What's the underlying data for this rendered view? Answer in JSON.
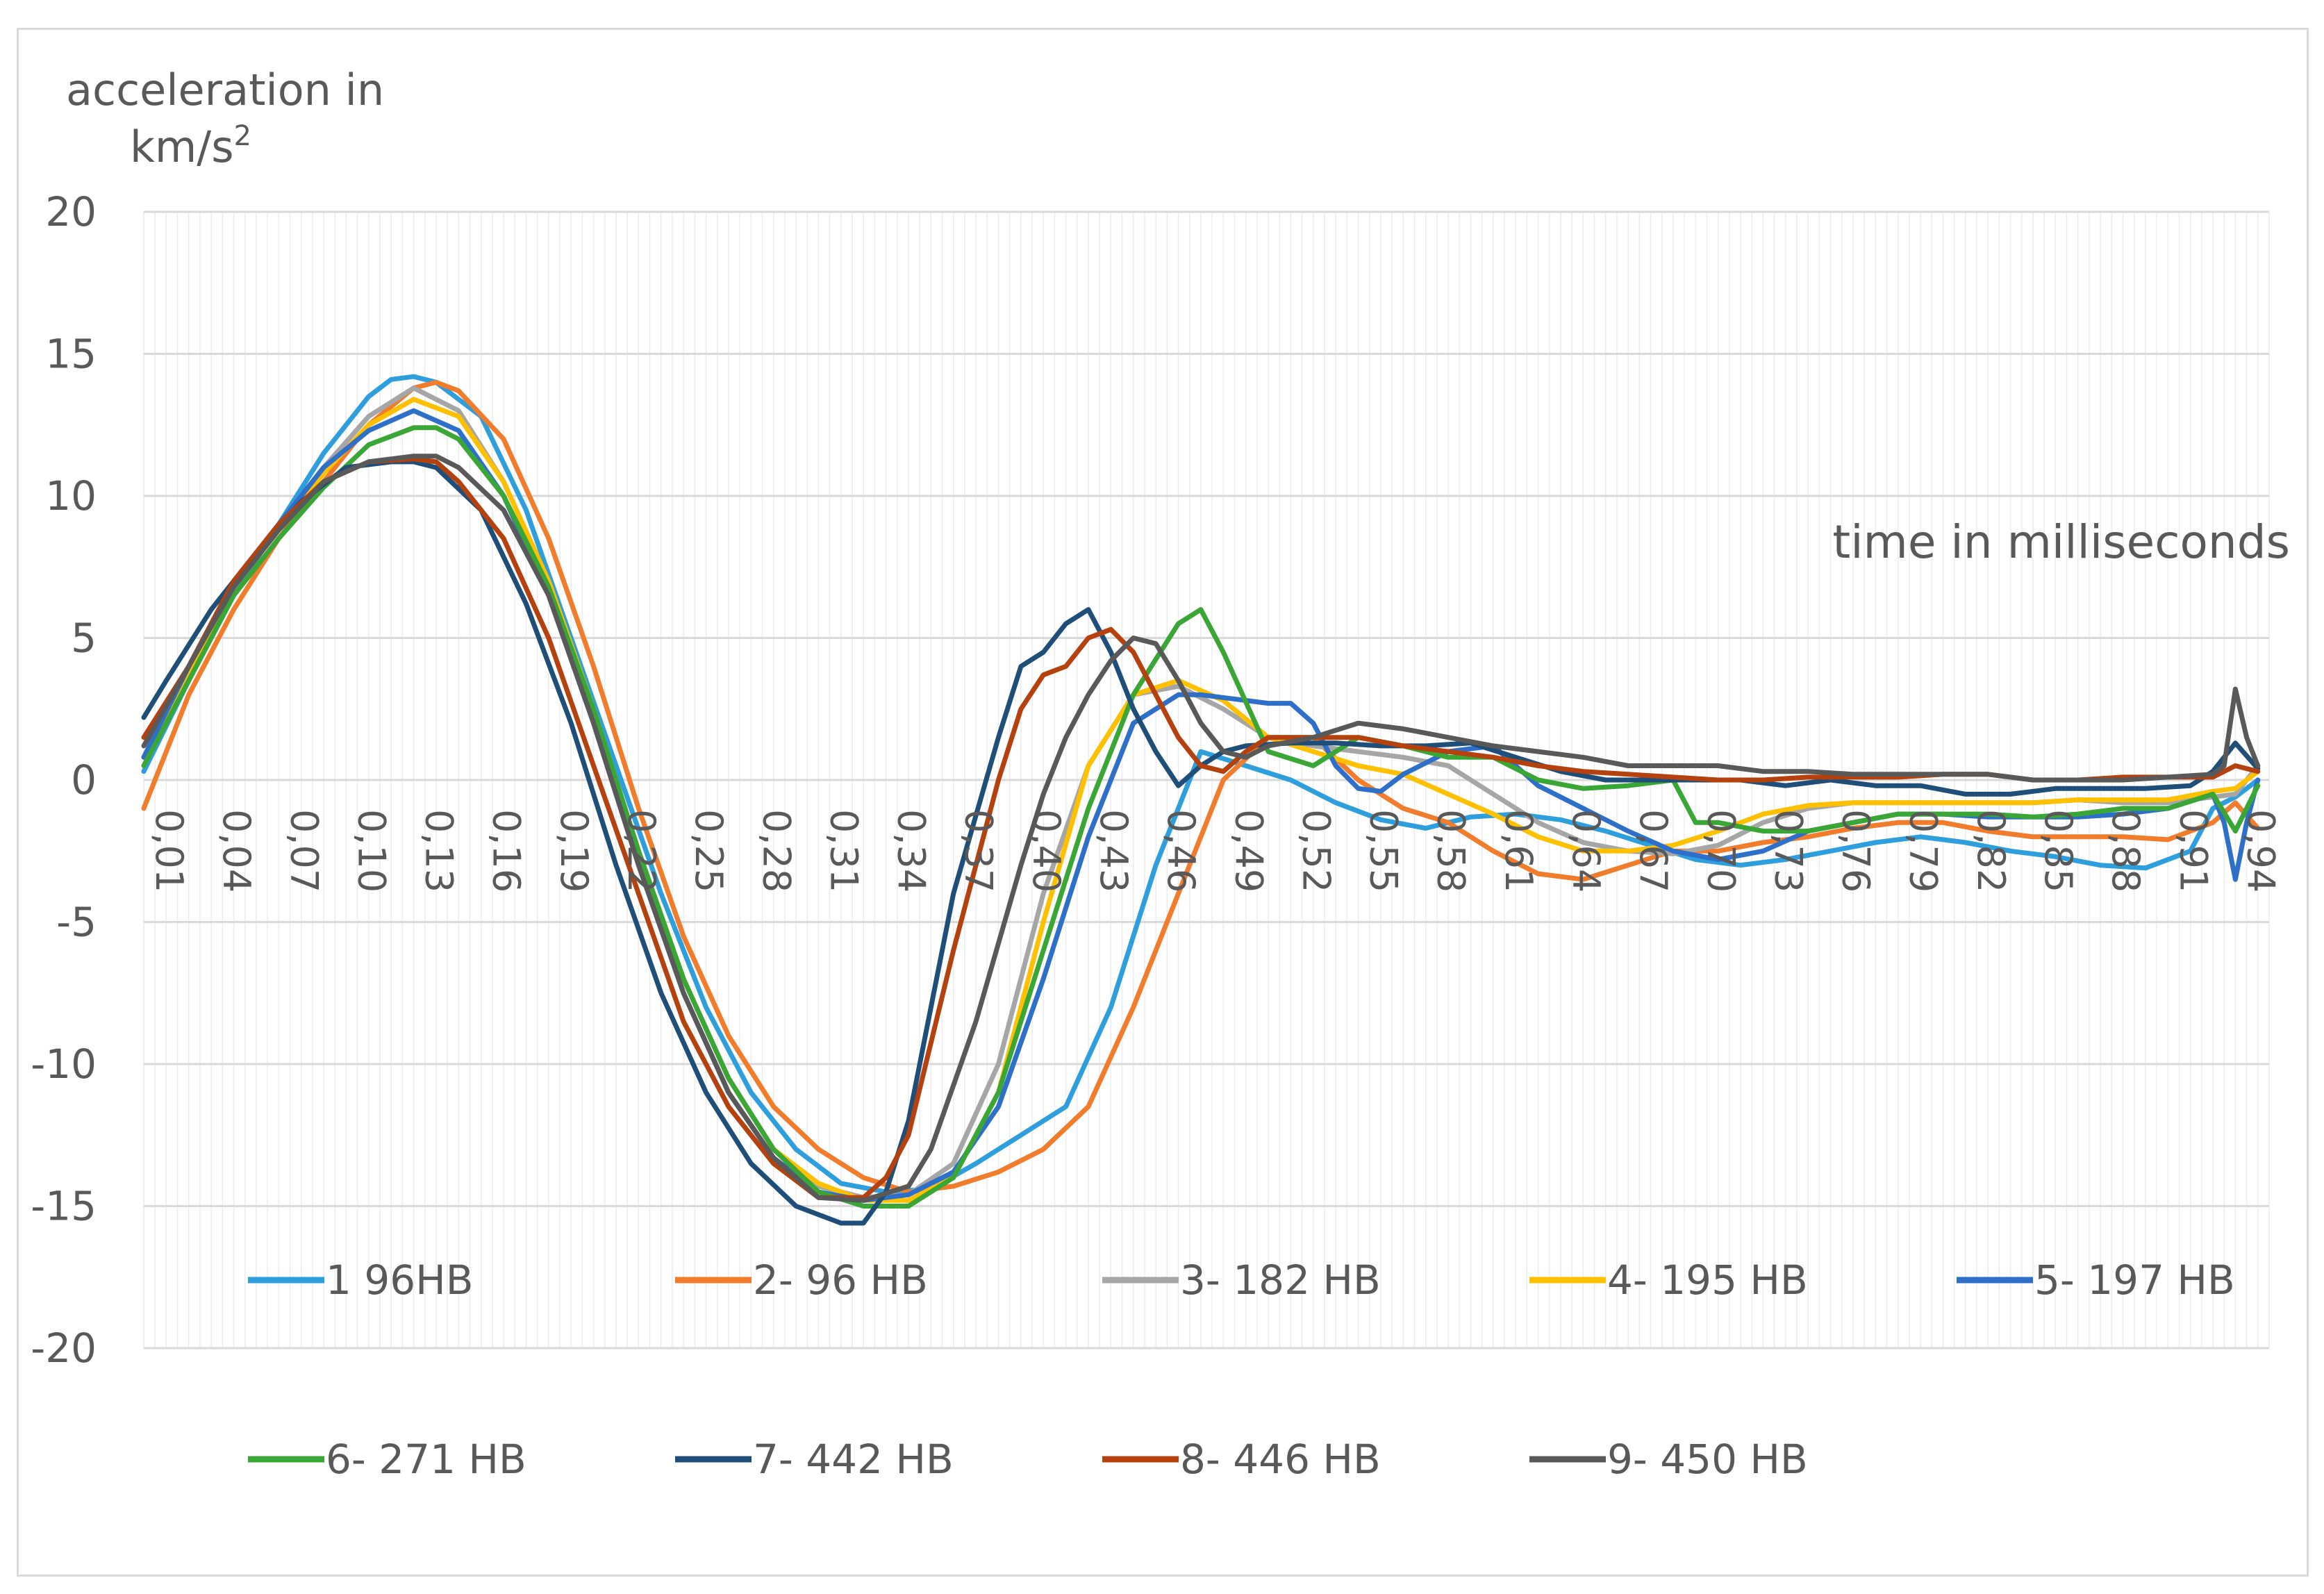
{
  "chart_data": {
    "type": "line",
    "ylabel_line1": "acceleration in",
    "ylabel_line2": "km/s",
    "ylabel_sup": "2",
    "xlabel": "time in milliseconds",
    "ylim": [
      -20,
      20
    ],
    "y_ticks": [
      20,
      15,
      10,
      5,
      0,
      -5,
      -10,
      -15,
      -20
    ],
    "x_tick_labels": [
      "0,01",
      "0,04",
      "0,07",
      "0,10",
      "0,13",
      "0,16",
      "0,19",
      "0,22",
      "0,25",
      "0,28",
      "0,31",
      "0,34",
      "0,37",
      "0,40",
      "0,43",
      "0,46",
      "0,49",
      "0,52",
      "0,55",
      "0,58",
      "0,61",
      "0,64",
      "0,67",
      "0,70",
      "0,73",
      "0,76",
      "0,79",
      "0,82",
      "0,85",
      "0,88",
      "0,91",
      "0,94"
    ],
    "x_tick_values": [
      0.01,
      0.04,
      0.07,
      0.1,
      0.13,
      0.16,
      0.19,
      0.22,
      0.25,
      0.28,
      0.31,
      0.34,
      0.37,
      0.4,
      0.43,
      0.46,
      0.49,
      0.52,
      0.55,
      0.58,
      0.61,
      0.64,
      0.67,
      0.7,
      0.73,
      0.76,
      0.79,
      0.82,
      0.85,
      0.88,
      0.91,
      0.94
    ],
    "xlim": [
      0.01,
      0.955
    ],
    "grid": "horizontal and vertical",
    "legend": "bottom",
    "series": [
      {
        "name": "1 96HB",
        "color": "#2e9fdc",
        "x": [
          0.01,
          0.03,
          0.05,
          0.07,
          0.09,
          0.11,
          0.12,
          0.13,
          0.14,
          0.16,
          0.18,
          0.2,
          0.22,
          0.24,
          0.26,
          0.28,
          0.3,
          0.32,
          0.34,
          0.36,
          0.38,
          0.4,
          0.42,
          0.44,
          0.46,
          0.48,
          0.5,
          0.52,
          0.54,
          0.56,
          0.58,
          0.6,
          0.62,
          0.64,
          0.66,
          0.68,
          0.7,
          0.72,
          0.74,
          0.76,
          0.78,
          0.8,
          0.82,
          0.84,
          0.86,
          0.88,
          0.9,
          0.92,
          0.93,
          0.94,
          0.95
        ],
        "y": [
          0.3,
          3.5,
          6.5,
          9,
          11.5,
          13.5,
          14.1,
          14.2,
          14,
          12.8,
          9.5,
          5,
          0.5,
          -4,
          -8,
          -11,
          -13,
          -14.2,
          -14.5,
          -14.4,
          -13.5,
          -12.5,
          -11.5,
          -8,
          -3,
          1,
          0.5,
          0,
          -0.8,
          -1.4,
          -1.7,
          -1.3,
          -1.2,
          -1.4,
          -1.8,
          -2.3,
          -2.8,
          -3,
          -2.8,
          -2.5,
          -2.2,
          -2,
          -2.2,
          -2.5,
          -2.7,
          -3,
          -3.1,
          -2.5,
          -1,
          -0.6,
          0
        ]
      },
      {
        "name": "2- 96 HB",
        "color": "#f07c2c",
        "x": [
          0.01,
          0.03,
          0.05,
          0.07,
          0.09,
          0.11,
          0.13,
          0.14,
          0.15,
          0.17,
          0.19,
          0.21,
          0.23,
          0.25,
          0.27,
          0.29,
          0.31,
          0.33,
          0.35,
          0.37,
          0.39,
          0.41,
          0.43,
          0.45,
          0.47,
          0.49,
          0.51,
          0.53,
          0.55,
          0.57,
          0.59,
          0.61,
          0.63,
          0.65,
          0.67,
          0.69,
          0.71,
          0.73,
          0.75,
          0.77,
          0.79,
          0.81,
          0.83,
          0.85,
          0.87,
          0.89,
          0.91,
          0.93,
          0.94,
          0.95
        ],
        "y": [
          -1,
          3,
          6,
          8.5,
          10.5,
          12.5,
          13.8,
          14,
          13.7,
          12,
          8.5,
          4,
          -1,
          -5.5,
          -9,
          -11.5,
          -13,
          -14,
          -14.5,
          -14.3,
          -13.8,
          -13,
          -11.5,
          -8,
          -4,
          0,
          1.5,
          1.5,
          0,
          -1,
          -1.5,
          -2.5,
          -3.3,
          -3.5,
          -3,
          -2.5,
          -2.5,
          -2.2,
          -2,
          -1.7,
          -1.5,
          -1.5,
          -1.8,
          -2,
          -2,
          -2,
          -2.1,
          -1.5,
          -0.8,
          -1.7
        ]
      },
      {
        "name": "3- 182 HB",
        "color": "#a6a6a6",
        "x": [
          0.01,
          0.03,
          0.05,
          0.07,
          0.09,
          0.11,
          0.13,
          0.15,
          0.17,
          0.19,
          0.21,
          0.23,
          0.25,
          0.27,
          0.29,
          0.31,
          0.33,
          0.35,
          0.37,
          0.39,
          0.41,
          0.43,
          0.45,
          0.47,
          0.49,
          0.51,
          0.53,
          0.55,
          0.57,
          0.59,
          0.61,
          0.63,
          0.65,
          0.67,
          0.69,
          0.71,
          0.73,
          0.75,
          0.77,
          0.79,
          0.81,
          0.83,
          0.85,
          0.87,
          0.89,
          0.91,
          0.93,
          0.94,
          0.95
        ],
        "y": [
          0.8,
          4,
          7,
          9,
          11,
          12.8,
          13.8,
          13,
          10.5,
          7,
          2.5,
          -2.5,
          -7,
          -10.5,
          -13,
          -14.3,
          -14.7,
          -14.6,
          -13.5,
          -10,
          -4,
          0.5,
          3,
          3.3,
          2.5,
          1.5,
          1.2,
          1,
          0.8,
          0.5,
          -0.5,
          -1.5,
          -2.2,
          -2.5,
          -2.6,
          -2.3,
          -1.5,
          -1,
          -0.8,
          -0.8,
          -0.8,
          -0.8,
          -0.8,
          -0.7,
          -0.8,
          -0.8,
          -0.6,
          -0.5,
          0.5
        ]
      },
      {
        "name": "4- 195 HB",
        "color": "#ffc000",
        "x": [
          0.01,
          0.03,
          0.05,
          0.07,
          0.09,
          0.11,
          0.13,
          0.15,
          0.17,
          0.19,
          0.21,
          0.23,
          0.25,
          0.27,
          0.29,
          0.31,
          0.33,
          0.35,
          0.37,
          0.39,
          0.41,
          0.43,
          0.45,
          0.47,
          0.49,
          0.51,
          0.53,
          0.55,
          0.57,
          0.59,
          0.61,
          0.63,
          0.65,
          0.67,
          0.69,
          0.71,
          0.73,
          0.75,
          0.77,
          0.79,
          0.81,
          0.83,
          0.85,
          0.87,
          0.89,
          0.91,
          0.93,
          0.94,
          0.95
        ],
        "y": [
          0.5,
          3.8,
          6.8,
          8.8,
          10.8,
          12.5,
          13.4,
          12.8,
          10.5,
          7,
          2.5,
          -2.5,
          -7,
          -10.5,
          -13,
          -14.2,
          -14.8,
          -14.8,
          -14,
          -11,
          -5,
          0.5,
          3,
          3.5,
          2.8,
          1.5,
          1,
          0.5,
          0.2,
          -0.5,
          -1.2,
          -2,
          -2.5,
          -2.5,
          -2.3,
          -1.8,
          -1.2,
          -0.9,
          -0.8,
          -0.8,
          -0.8,
          -0.8,
          -0.8,
          -0.7,
          -0.7,
          -0.7,
          -0.4,
          -0.3,
          0.3
        ]
      },
      {
        "name": "5- 197 HB",
        "color": "#2e6fc9",
        "x": [
          0.01,
          0.03,
          0.05,
          0.07,
          0.09,
          0.11,
          0.13,
          0.15,
          0.17,
          0.19,
          0.21,
          0.23,
          0.25,
          0.27,
          0.29,
          0.31,
          0.33,
          0.35,
          0.37,
          0.39,
          0.41,
          0.43,
          0.45,
          0.47,
          0.48,
          0.5,
          0.51,
          0.52,
          0.53,
          0.54,
          0.55,
          0.56,
          0.57,
          0.59,
          0.61,
          0.63,
          0.65,
          0.67,
          0.69,
          0.71,
          0.73,
          0.75,
          0.77,
          0.79,
          0.81,
          0.83,
          0.85,
          0.87,
          0.89,
          0.91,
          0.93,
          0.935,
          0.94,
          0.945,
          0.95
        ],
        "y": [
          0.8,
          4,
          7,
          9,
          11,
          12.3,
          13,
          12.3,
          10,
          6.5,
          2,
          -3,
          -7.5,
          -11,
          -13.3,
          -14.5,
          -14.8,
          -14.6,
          -13.8,
          -11.5,
          -7,
          -2,
          2,
          3,
          3,
          2.8,
          2.7,
          2.7,
          2,
          0.5,
          -0.3,
          -0.4,
          0.2,
          1,
          1.2,
          -0.2,
          -1,
          -1.8,
          -2.5,
          -2.8,
          -2.5,
          -1.8,
          -1.5,
          -1.2,
          -1.2,
          -1.3,
          -1.3,
          -1.3,
          -1.2,
          -1,
          -0.5,
          -1.5,
          -3.5,
          -1.5,
          0
        ]
      },
      {
        "name": "6- 271 HB",
        "color": "#3aa635",
        "x": [
          0.01,
          0.03,
          0.05,
          0.07,
          0.09,
          0.11,
          0.13,
          0.14,
          0.15,
          0.17,
          0.19,
          0.21,
          0.23,
          0.25,
          0.27,
          0.29,
          0.31,
          0.33,
          0.35,
          0.37,
          0.39,
          0.41,
          0.43,
          0.45,
          0.47,
          0.48,
          0.49,
          0.51,
          0.53,
          0.55,
          0.57,
          0.59,
          0.61,
          0.63,
          0.65,
          0.67,
          0.69,
          0.7,
          0.71,
          0.73,
          0.75,
          0.77,
          0.79,
          0.81,
          0.83,
          0.85,
          0.87,
          0.89,
          0.91,
          0.93,
          0.94,
          0.95
        ],
        "y": [
          0.5,
          3.5,
          6.5,
          8.5,
          10.3,
          11.8,
          12.4,
          12.4,
          12,
          10,
          6.8,
          2.5,
          -2.5,
          -7,
          -10.5,
          -13,
          -14.5,
          -15,
          -15,
          -14,
          -11,
          -6,
          -1,
          3,
          5.5,
          6,
          4.5,
          1,
          0.5,
          1.5,
          1.2,
          0.8,
          0.8,
          0,
          -0.3,
          -0.2,
          0,
          -1.5,
          -1.5,
          -1.8,
          -1.8,
          -1.5,
          -1.2,
          -1.2,
          -1.2,
          -1.3,
          -1.2,
          -1,
          -1,
          -0.5,
          -1.8,
          -0.2
        ]
      },
      {
        "name": "7- 442 HB",
        "color": "#1f4e79",
        "x": [
          0.01,
          0.02,
          0.04,
          0.06,
          0.08,
          0.1,
          0.12,
          0.13,
          0.14,
          0.16,
          0.18,
          0.2,
          0.22,
          0.24,
          0.26,
          0.28,
          0.3,
          0.32,
          0.33,
          0.34,
          0.35,
          0.37,
          0.39,
          0.4,
          0.41,
          0.42,
          0.43,
          0.44,
          0.45,
          0.46,
          0.47,
          0.48,
          0.49,
          0.5,
          0.52,
          0.54,
          0.56,
          0.58,
          0.6,
          0.62,
          0.64,
          0.66,
          0.68,
          0.7,
          0.72,
          0.74,
          0.76,
          0.78,
          0.8,
          0.82,
          0.84,
          0.86,
          0.88,
          0.9,
          0.92,
          0.93,
          0.94,
          0.95
        ],
        "y": [
          2.2,
          3.5,
          6,
          8,
          9.8,
          11,
          11.2,
          11.2,
          11,
          9.5,
          6.2,
          2,
          -3,
          -7.5,
          -11,
          -13.5,
          -15,
          -15.6,
          -15.6,
          -14.5,
          -12,
          -4,
          1.5,
          4,
          4.5,
          5.5,
          6,
          4.5,
          2.5,
          1,
          -0.2,
          0.5,
          1,
          1.2,
          1.3,
          1.3,
          1.2,
          1.2,
          1.3,
          0.8,
          0.3,
          0,
          0,
          0,
          0,
          -0.2,
          0,
          -0.2,
          -0.2,
          -0.5,
          -0.5,
          -0.3,
          -0.3,
          -0.3,
          -0.2,
          0.3,
          1.3,
          0.4
        ]
      },
      {
        "name": "8- 446 HB",
        "color": "#b5420e",
        "x": [
          0.01,
          0.03,
          0.05,
          0.07,
          0.09,
          0.11,
          0.13,
          0.14,
          0.15,
          0.17,
          0.19,
          0.21,
          0.23,
          0.25,
          0.27,
          0.29,
          0.31,
          0.33,
          0.34,
          0.35,
          0.37,
          0.39,
          0.4,
          0.41,
          0.42,
          0.43,
          0.44,
          0.45,
          0.46,
          0.47,
          0.48,
          0.49,
          0.5,
          0.51,
          0.53,
          0.55,
          0.57,
          0.59,
          0.61,
          0.63,
          0.65,
          0.67,
          0.69,
          0.71,
          0.73,
          0.75,
          0.77,
          0.79,
          0.81,
          0.83,
          0.85,
          0.87,
          0.89,
          0.91,
          0.93,
          0.94,
          0.95
        ],
        "y": [
          1.5,
          4,
          7,
          9,
          10.5,
          11.2,
          11.3,
          11.2,
          10.5,
          8.5,
          5,
          0.5,
          -4,
          -8.5,
          -11.5,
          -13.5,
          -14.7,
          -14.7,
          -14,
          -12.5,
          -6,
          0,
          2.5,
          3.7,
          4,
          5,
          5.3,
          4.5,
          3,
          1.5,
          0.5,
          0.3,
          1,
          1.5,
          1.5,
          1.5,
          1.2,
          1,
          0.8,
          0.5,
          0.3,
          0.2,
          0.1,
          0,
          0,
          0.1,
          0.1,
          0.1,
          0.2,
          0.2,
          0,
          0,
          0.1,
          0.1,
          0.1,
          0.5,
          0.3
        ]
      },
      {
        "name": "9- 450 HB",
        "color": "#595959",
        "x": [
          0.01,
          0.03,
          0.05,
          0.07,
          0.09,
          0.11,
          0.13,
          0.14,
          0.15,
          0.17,
          0.19,
          0.21,
          0.23,
          0.25,
          0.27,
          0.29,
          0.31,
          0.33,
          0.35,
          0.36,
          0.38,
          0.4,
          0.41,
          0.42,
          0.43,
          0.44,
          0.45,
          0.46,
          0.47,
          0.48,
          0.49,
          0.5,
          0.51,
          0.53,
          0.55,
          0.57,
          0.59,
          0.61,
          0.63,
          0.65,
          0.67,
          0.69,
          0.71,
          0.73,
          0.75,
          0.77,
          0.79,
          0.81,
          0.83,
          0.85,
          0.87,
          0.89,
          0.91,
          0.93,
          0.935,
          0.94,
          0.945,
          0.95
        ],
        "y": [
          1.2,
          4,
          6.8,
          8.8,
          10.5,
          11.2,
          11.4,
          11.4,
          11,
          9.5,
          6.5,
          2,
          -3,
          -7.5,
          -11,
          -13.3,
          -14.7,
          -14.8,
          -14.3,
          -13,
          -8.5,
          -3,
          -0.5,
          1.5,
          3,
          4.2,
          5,
          4.8,
          3.5,
          2,
          1,
          0.8,
          1.2,
          1.5,
          2,
          1.8,
          1.5,
          1.2,
          1,
          0.8,
          0.5,
          0.5,
          0.5,
          0.3,
          0.3,
          0.2,
          0.2,
          0.2,
          0.2,
          0,
          0,
          0,
          0.1,
          0.2,
          0.5,
          3.2,
          1.5,
          0.5
        ]
      }
    ]
  }
}
